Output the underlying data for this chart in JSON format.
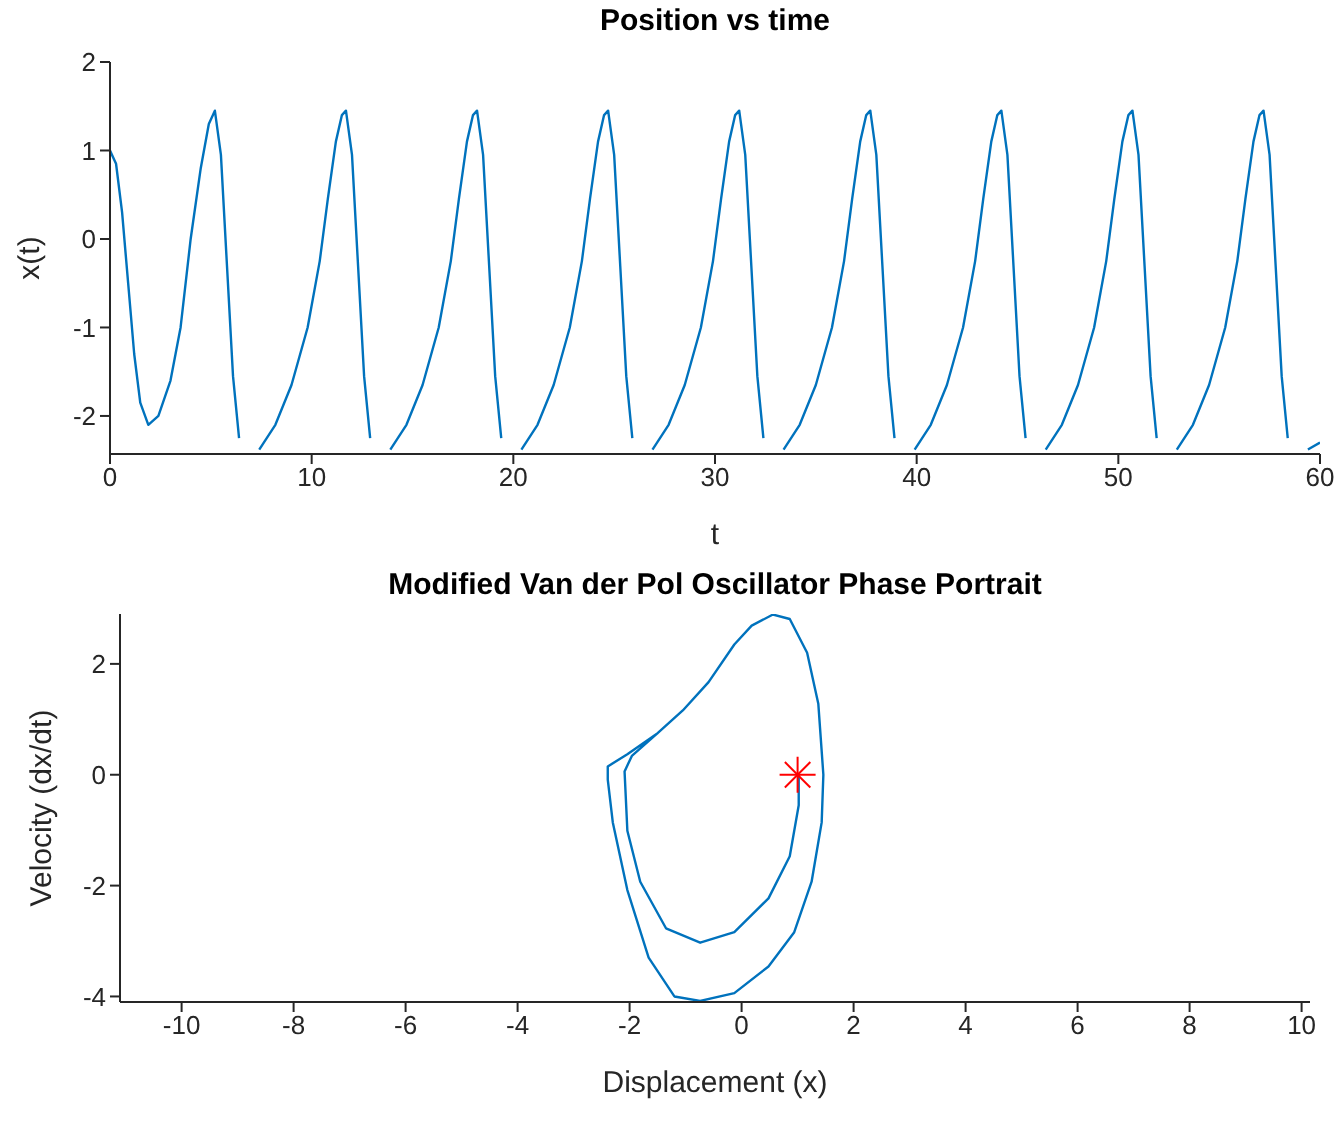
{
  "chart_data": [
    {
      "type": "line",
      "title": "Position vs time",
      "xlabel": "t",
      "ylabel": "x(t)",
      "xlim": [
        0,
        60
      ],
      "ylim": [
        -2.43,
        2
      ],
      "xticks": [
        0,
        10,
        20,
        30,
        40,
        50,
        60
      ],
      "yticks": [
        -2,
        -1,
        0,
        1,
        2
      ],
      "marker": "none",
      "line_style": "solid",
      "series": [
        {
          "color": "#0072bd",
          "x": [
            0,
            0.3,
            0.6,
            0.9,
            1.2,
            1.5,
            1.9,
            2.4,
            3.0,
            3.5,
            4.0,
            4.5,
            4.9,
            5.2,
            5.5,
            5.8,
            6.1,
            6.4,
            6.8,
            7.4,
            8.2,
            9.0,
            9.8,
            10.4,
            10.8,
            11.2,
            11.5,
            11.7,
            12.0,
            12.3,
            12.6,
            12.9,
            13.3,
            13.9,
            14.7,
            15.5,
            16.3,
            16.9,
            17.3,
            17.7,
            18.0,
            18.2,
            18.5,
            18.8,
            19.1,
            19.4,
            19.8,
            20.4,
            21.2,
            22.0,
            22.8,
            23.4,
            23.8,
            24.2,
            24.5,
            24.7,
            25.0,
            25.3,
            25.6,
            25.9,
            26.3,
            26.9,
            27.7,
            28.5,
            29.3,
            29.9,
            30.3,
            30.7,
            31.0,
            31.2,
            31.5,
            31.8,
            32.1,
            32.4,
            32.8,
            33.4,
            34.2,
            35.0,
            35.8,
            36.4,
            36.8,
            37.2,
            37.5,
            37.7,
            38.0,
            38.3,
            38.6,
            38.9,
            39.3,
            39.9,
            40.7,
            41.5,
            42.3,
            42.9,
            43.3,
            43.7,
            44.0,
            44.2,
            44.5,
            44.8,
            45.1,
            45.4,
            45.8,
            46.4,
            47.2,
            48.0,
            48.8,
            49.4,
            49.8,
            50.2,
            50.5,
            50.7,
            51.0,
            51.3,
            51.6,
            51.9,
            52.3,
            52.9,
            53.7,
            54.5,
            55.3,
            55.9,
            56.3,
            56.7,
            57.0,
            57.2,
            57.5,
            57.8,
            58.1,
            58.4,
            58.8,
            59.4,
            60.0
          ],
          "values": [
            1.0,
            0.85,
            0.3,
            -0.5,
            -1.3,
            -1.85,
            -2.1,
            -2.0,
            -1.6,
            -1.0,
            0.0,
            0.8,
            1.3,
            1.45,
            0.95,
            -0.3,
            -1.55,
            -2.25,
            null,
            -2.38,
            -2.1,
            -1.65,
            -1.0,
            -0.25,
            0.45,
            1.1,
            1.4,
            1.45,
            0.95,
            -0.3,
            -1.55,
            -2.25,
            null,
            -2.38,
            -2.1,
            -1.65,
            -1.0,
            -0.25,
            0.45,
            1.1,
            1.4,
            1.45,
            0.95,
            -0.3,
            -1.55,
            -2.25,
            null,
            -2.38,
            -2.1,
            -1.65,
            -1.0,
            -0.25,
            0.45,
            1.1,
            1.4,
            1.45,
            0.95,
            -0.3,
            -1.55,
            -2.25,
            null,
            -2.38,
            -2.1,
            -1.65,
            -1.0,
            -0.25,
            0.45,
            1.1,
            1.4,
            1.45,
            0.95,
            -0.3,
            -1.55,
            -2.25,
            null,
            -2.38,
            -2.1,
            -1.65,
            -1.0,
            -0.25,
            0.45,
            1.1,
            1.4,
            1.45,
            0.95,
            -0.3,
            -1.55,
            -2.25,
            null,
            -2.38,
            -2.1,
            -1.65,
            -1.0,
            -0.25,
            0.45,
            1.1,
            1.4,
            1.45,
            0.95,
            -0.3,
            -1.55,
            -2.25,
            null,
            -2.38,
            -2.1,
            -1.65,
            -1.0,
            -0.25,
            0.45,
            1.1,
            1.4,
            1.45,
            0.95,
            -0.3,
            -1.55,
            -2.25,
            null,
            -2.38,
            -2.1,
            -1.65,
            -1.0,
            -0.25,
            0.45,
            1.1,
            1.4,
            1.45,
            0.95,
            -0.3,
            -1.55,
            -2.25,
            null,
            -2.38,
            -2.3
          ]
        }
      ]
    },
    {
      "type": "line",
      "title": "Modified Van der Pol Oscillator Phase Portrait",
      "xlabel": "Displacement (x)",
      "ylabel": "Velocity (dx/dt)",
      "xlim": [
        -11.1,
        10.15
      ],
      "ylim": [
        -4.1,
        2.9
      ],
      "xticks": [
        -10,
        -8,
        -6,
        -4,
        -2,
        0,
        2,
        4,
        6,
        8,
        10
      ],
      "yticks": [
        -4,
        -2,
        0,
        2
      ],
      "marker": "none",
      "line_style": "solid",
      "series": [
        {
          "color": "#0072bd",
          "x": [
            1.02,
            1.02,
            0.86,
            0.48,
            -0.13,
            -0.74,
            -1.35,
            -1.81,
            -2.04,
            -2.09,
            -1.96,
            -1.5,
            -1.05,
            -0.59,
            -0.13,
            0.18,
            0.56,
            0.86,
            1.17,
            1.37,
            1.46,
            1.43,
            1.25,
            0.94,
            0.48,
            -0.13,
            -0.74,
            -1.2,
            -1.66,
            -2.04,
            -2.3,
            -2.39,
            -2.39,
            -2.04,
            -1.5,
            -1.05,
            -0.59,
            -0.13,
            0.18,
            0.56,
            0.86,
            1.17,
            1.37,
            1.46,
            1.43,
            1.25,
            0.94,
            0.48,
            -0.13,
            -0.74,
            -1.2,
            -1.66,
            -2.04,
            -2.3,
            -2.39,
            -2.39
          ],
          "values": [
            0,
            -0.55,
            -1.47,
            -2.23,
            -2.84,
            -3.03,
            -2.77,
            -1.93,
            -1.01,
            0.06,
            0.34,
            0.75,
            1.16,
            1.67,
            2.35,
            2.69,
            2.89,
            2.81,
            2.2,
            1.28,
            0,
            -0.86,
            -1.93,
            -2.84,
            -3.46,
            -3.94,
            -4.08,
            -4.0,
            -3.3,
            -2.08,
            -0.86,
            -0.09,
            0.15,
            0.37,
            0.75,
            1.16,
            1.67,
            2.35,
            2.69,
            2.89,
            2.81,
            2.2,
            1.28,
            0,
            -0.86,
            -1.93,
            -2.84,
            -3.46,
            -3.94,
            -4.08,
            -4.0,
            -3.3,
            -2.08,
            -0.86,
            -0.09,
            0.15
          ]
        },
        {
          "type": "scatter",
          "marker": "cross",
          "color": "#ff0000",
          "x": [
            1
          ],
          "values": [
            0
          ]
        }
      ]
    }
  ]
}
